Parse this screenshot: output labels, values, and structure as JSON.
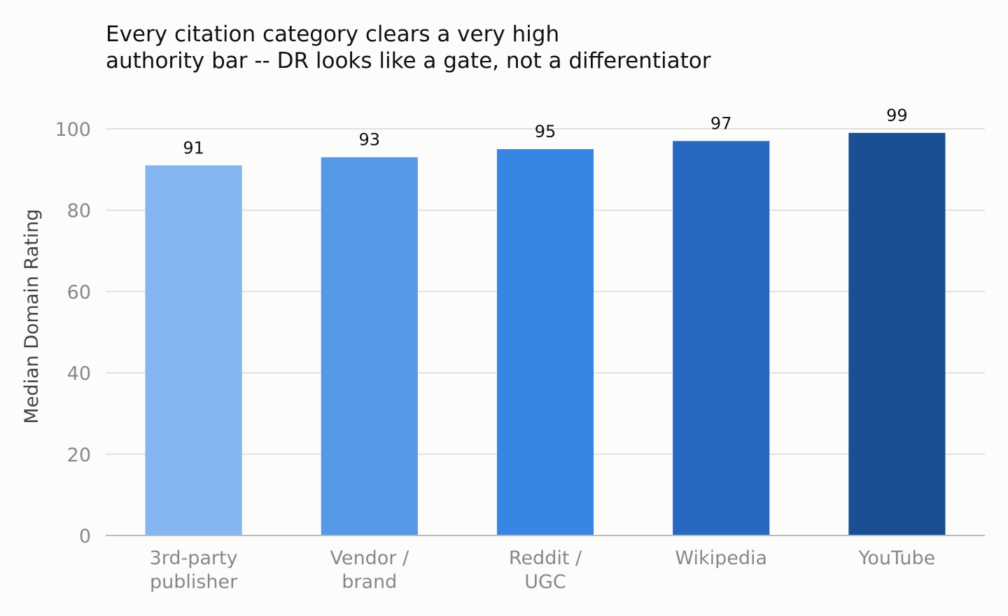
{
  "chart_data": {
    "type": "bar",
    "title_lines": [
      "Every citation category clears a very high",
      "authority bar -- DR looks like a gate, not a differentiator"
    ],
    "ylabel": "Median Domain Rating",
    "xlabel": "",
    "ylim": [
      0,
      100
    ],
    "yticks": [
      "0",
      "20",
      "40",
      "60",
      "80",
      "100"
    ],
    "grid": true,
    "categories": [
      [
        "3rd-party",
        "publisher"
      ],
      [
        "Vendor /",
        "brand"
      ],
      [
        "Reddit /",
        "UGC"
      ],
      [
        "Wikipedia"
      ],
      [
        "YouTube"
      ]
    ],
    "values": [
      91,
      93,
      95,
      97,
      99
    ],
    "value_labels": [
      "91",
      "93",
      "95",
      "97",
      "99"
    ],
    "colors": [
      "#85b5f0",
      "#5599e6",
      "#3786e3",
      "#2769c0",
      "#1a4f93"
    ]
  }
}
